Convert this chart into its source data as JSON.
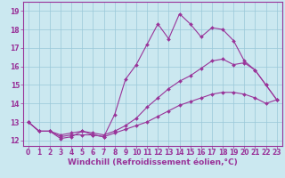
{
  "xlabel": "Windchill (Refroidissement éolien,°C)",
  "bg_color": "#cbe8f0",
  "line_color": "#993399",
  "marker": "D",
  "markersize": 2,
  "linewidth": 0.8,
  "x_ticks": [
    0,
    1,
    2,
    3,
    4,
    5,
    6,
    7,
    8,
    9,
    10,
    11,
    12,
    13,
    14,
    15,
    16,
    17,
    18,
    19,
    20,
    21,
    22,
    23
  ],
  "y_ticks": [
    12,
    13,
    14,
    15,
    16,
    17,
    18,
    19
  ],
  "xlim": [
    -0.5,
    23.5
  ],
  "ylim": [
    11.7,
    19.5
  ],
  "line1_x": [
    0,
    1,
    2,
    3,
    4,
    5,
    6,
    7,
    8,
    9,
    10,
    11,
    12,
    13,
    14,
    15,
    16,
    17,
    18,
    19,
    20,
    21,
    22,
    23
  ],
  "line1_y": [
    13.0,
    12.5,
    12.5,
    12.1,
    12.2,
    12.5,
    12.3,
    12.2,
    13.4,
    15.3,
    16.1,
    17.2,
    18.3,
    17.5,
    18.85,
    18.3,
    17.6,
    18.1,
    18.0,
    17.4,
    16.3,
    15.8,
    15.0,
    14.2
  ],
  "line2_x": [
    0,
    1,
    2,
    3,
    4,
    5,
    6,
    7,
    8,
    9,
    10,
    11,
    12,
    13,
    14,
    15,
    16,
    17,
    18,
    19,
    20,
    21,
    22,
    23
  ],
  "line2_y": [
    13.0,
    12.5,
    12.5,
    12.3,
    12.4,
    12.5,
    12.4,
    12.3,
    12.5,
    12.8,
    13.2,
    13.8,
    14.3,
    14.8,
    15.2,
    15.5,
    15.9,
    16.3,
    16.4,
    16.1,
    16.2,
    15.8,
    15.0,
    14.2
  ],
  "line3_x": [
    0,
    1,
    2,
    3,
    4,
    5,
    6,
    7,
    8,
    9,
    10,
    11,
    12,
    13,
    14,
    15,
    16,
    17,
    18,
    19,
    20,
    21,
    22,
    23
  ],
  "line3_y": [
    13.0,
    12.5,
    12.5,
    12.2,
    12.3,
    12.3,
    12.3,
    12.2,
    12.4,
    12.6,
    12.8,
    13.0,
    13.3,
    13.6,
    13.9,
    14.1,
    14.3,
    14.5,
    14.6,
    14.6,
    14.5,
    14.3,
    14.0,
    14.2
  ],
  "grid_color": "#9ac8d8",
  "tick_fontsize": 5.5,
  "xlabel_fontsize": 6.5
}
